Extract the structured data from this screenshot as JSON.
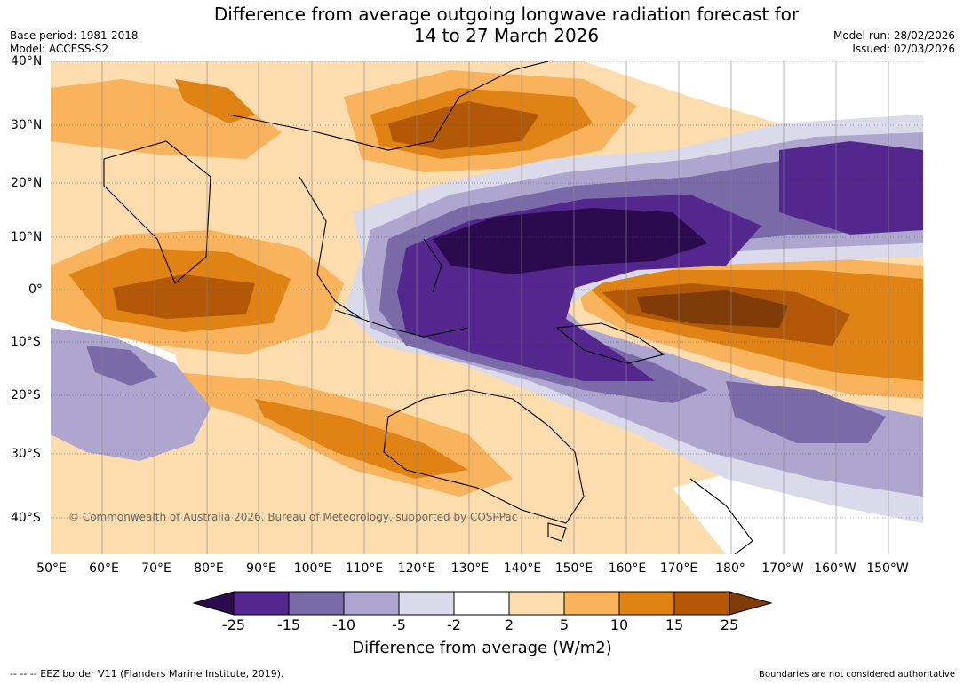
{
  "header": {
    "title_line1": "Difference from average outgoing longwave radiation forecast for",
    "title_line2": "14 to 27 March 2026",
    "base_period": "Base period: 1981-2018",
    "model": "Model: ACCESS-S2",
    "model_run": "Model run: 28/02/2026",
    "issued": "Issued: 02/03/2026"
  },
  "map": {
    "copyright": "© Commonwealth of Australia 2026, Bureau of Meteorology, supported by COSPPac",
    "lat_labels": [
      "40°N",
      "30°N",
      "20°N",
      "10°N",
      "0°",
      "10°S",
      "20°S",
      "30°S",
      "40°S"
    ],
    "lon_labels": [
      "50°E",
      "60°E",
      "70°E",
      "80°E",
      "90°E",
      "100°E",
      "110°E",
      "120°E",
      "130°E",
      "140°E",
      "150°E",
      "160°E",
      "170°E",
      "180°",
      "170°W",
      "160°W",
      "150°W"
    ]
  },
  "colorbar": {
    "labels": [
      "-25",
      "-15",
      "-10",
      "-5",
      "-2",
      "2",
      "5",
      "10",
      "15",
      "25"
    ],
    "colors": [
      "#2c0a4e",
      "#54278f",
      "#7a6aa8",
      "#aea6cf",
      "#dadaeb",
      "#ffffff",
      "#fddcad",
      "#f9b35c",
      "#e08214",
      "#b35806",
      "#7f3b08"
    ],
    "title": "Difference from average (W/m2)"
  },
  "footer": {
    "eez": "--  --  -- EEZ border V11 (Flanders Marine Institute, 2019).",
    "disclaimer": "Boundaries are not considered authoritative"
  }
}
